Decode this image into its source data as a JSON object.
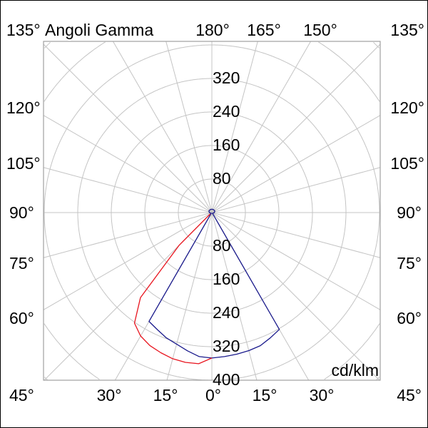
{
  "chart_data": {
    "type": "polar-line",
    "title": "Angoli Gamma",
    "unit": "cd/klm",
    "radial_ticks": [
      80,
      160,
      240,
      320,
      400
    ],
    "radial_max": 400,
    "angle_step": 15,
    "grid": true,
    "angle_labels": {
      "top": [
        "135°",
        "180°",
        "165°",
        "150°",
        "135°"
      ],
      "left": [
        "120°",
        "105°",
        "90°",
        "75°",
        "60°"
      ],
      "right": [
        "120°",
        "105°",
        "90°",
        "75°",
        "60°"
      ],
      "bottom": [
        "45°",
        "30°",
        "15°",
        "0°",
        "15°",
        "30°",
        "45°"
      ]
    },
    "series": [
      {
        "color": "#1a1a8c",
        "gamma": [
          -180,
          -150,
          -120,
          -90,
          -60,
          -40,
          -35,
          -30,
          -25,
          -20,
          -15,
          -10,
          -5,
          0,
          5,
          10,
          15,
          20,
          25,
          30,
          35,
          40,
          60,
          90,
          120,
          150,
          180
        ],
        "values": [
          8,
          8,
          8,
          6,
          3,
          2,
          5,
          300,
          308,
          318,
          325,
          335,
          345,
          347,
          345,
          343,
          341,
          338,
          330,
          322,
          5,
          2,
          3,
          6,
          8,
          8,
          8
        ]
      },
      {
        "color": "#e8141e",
        "gamma": [
          -50,
          -45,
          -40,
          -35,
          -30,
          -25,
          -20,
          -15,
          -10,
          -5,
          0
        ],
        "values": [
          5,
          111,
          265,
          322,
          340,
          350,
          356,
          361,
          363,
          362,
          347
        ]
      }
    ]
  }
}
